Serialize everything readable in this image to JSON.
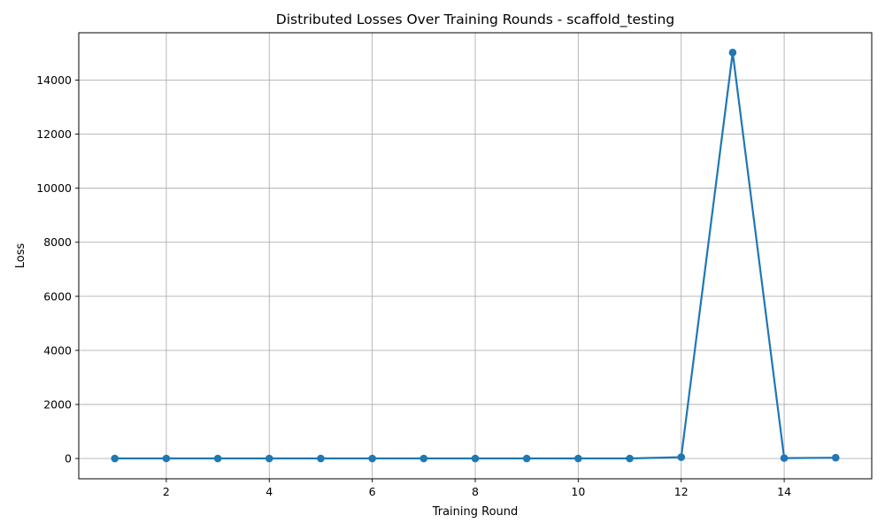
{
  "chart_data": {
    "type": "line",
    "title": "Distributed Losses Over Training Rounds  - scaffold_testing",
    "xlabel": "Training Round",
    "ylabel": "Loss",
    "xlim": [
      0.3,
      15.7
    ],
    "ylim": [
      -750,
      15750
    ],
    "xticks": [
      2,
      4,
      6,
      8,
      10,
      12,
      14
    ],
    "yticks": [
      0,
      2000,
      4000,
      6000,
      8000,
      10000,
      12000,
      14000
    ],
    "grid": true,
    "color": "#1f77b4",
    "marker": "circle",
    "series": [
      {
        "x": [
          1,
          2,
          3,
          4,
          5,
          6,
          7,
          8,
          9,
          10,
          11,
          12,
          13,
          14,
          15
        ],
        "values": [
          2,
          3,
          2,
          2,
          2,
          2,
          2,
          2,
          2,
          2,
          2,
          50,
          15020,
          15,
          30
        ]
      }
    ]
  }
}
